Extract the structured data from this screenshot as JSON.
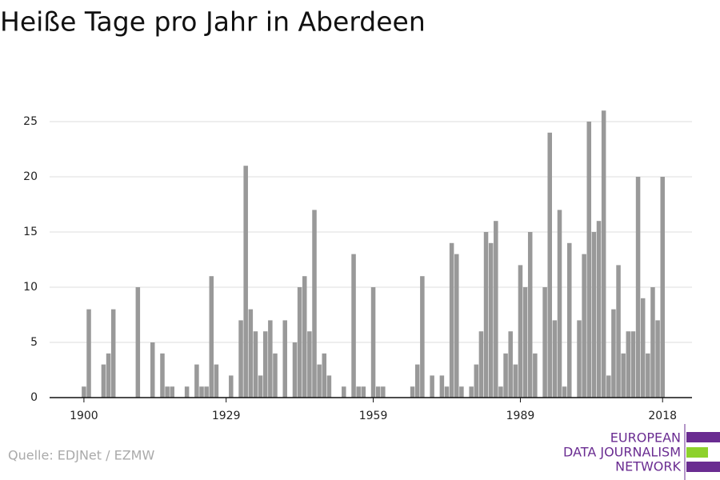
{
  "chart_data": {
    "type": "bar",
    "title": "Heiße Tage pro Jahr in Aberdeen",
    "x": [
      1900,
      1901,
      1902,
      1903,
      1904,
      1905,
      1906,
      1907,
      1908,
      1909,
      1910,
      1911,
      1912,
      1913,
      1914,
      1915,
      1916,
      1917,
      1918,
      1919,
      1920,
      1921,
      1922,
      1923,
      1924,
      1925,
      1926,
      1927,
      1928,
      1929,
      1930,
      1931,
      1932,
      1933,
      1934,
      1935,
      1936,
      1937,
      1938,
      1939,
      1940,
      1941,
      1942,
      1943,
      1944,
      1945,
      1946,
      1947,
      1948,
      1949,
      1950,
      1951,
      1952,
      1953,
      1954,
      1955,
      1956,
      1957,
      1958,
      1959,
      1960,
      1961,
      1962,
      1963,
      1964,
      1965,
      1966,
      1967,
      1968,
      1969,
      1970,
      1971,
      1972,
      1973,
      1974,
      1975,
      1976,
      1977,
      1978,
      1979,
      1980,
      1981,
      1982,
      1983,
      1984,
      1985,
      1986,
      1987,
      1988,
      1989,
      1990,
      1991,
      1992,
      1993,
      1994,
      1995,
      1996,
      1997,
      1998,
      1999,
      2000,
      2001,
      2002,
      2003,
      2004,
      2005,
      2006,
      2007,
      2008,
      2009,
      2010,
      2011,
      2012,
      2013,
      2014,
      2015,
      2016,
      2017,
      2018
    ],
    "values": [
      1,
      8,
      0,
      0,
      3,
      4,
      8,
      0,
      0,
      0,
      0,
      10,
      0,
      0,
      5,
      0,
      4,
      1,
      1,
      0,
      0,
      1,
      0,
      3,
      1,
      1,
      11,
      3,
      0,
      0,
      2,
      0,
      7,
      21,
      8,
      6,
      2,
      6,
      7,
      4,
      0,
      7,
      0,
      5,
      10,
      11,
      6,
      17,
      3,
      4,
      2,
      0,
      0,
      1,
      0,
      13,
      1,
      1,
      0,
      10,
      1,
      1,
      0,
      0,
      0,
      0,
      0,
      1,
      3,
      11,
      0,
      2,
      0,
      2,
      1,
      14,
      13,
      1,
      0,
      1,
      3,
      6,
      15,
      14,
      16,
      1,
      4,
      6,
      3,
      12,
      10,
      15,
      4,
      0,
      10,
      24,
      7,
      17,
      1,
      14,
      0,
      7,
      13,
      25,
      15,
      16,
      26,
      2,
      8,
      12,
      4,
      6,
      6,
      20,
      9,
      4,
      10,
      7,
      20
    ],
    "color": "#999999",
    "xlim": [
      1893,
      2024
    ],
    "xticks": [
      1900,
      1929,
      1959,
      1989,
      2018
    ],
    "ylim": [
      0,
      27
    ],
    "yticks": [
      0,
      5,
      10,
      15,
      20,
      25
    ],
    "grid": true
  },
  "source": "Quelle: EDJNet / EZMW",
  "logo": [
    "EUROPEAN",
    "DATA JOURNALISM",
    "NETWORK"
  ]
}
